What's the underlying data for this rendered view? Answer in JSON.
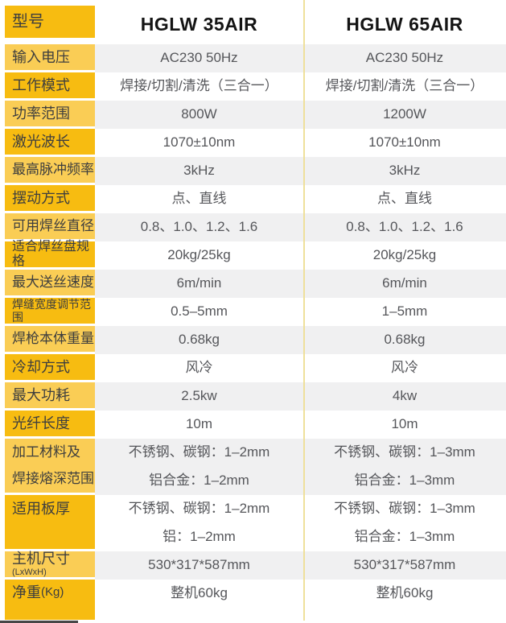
{
  "title": "激光焊机参数对比表",
  "colors": {
    "label_amber": "#F7BC11",
    "label_gold_light": "#FACD55",
    "row_gray": "#F0F0F1",
    "row_white": "#FFFFFF",
    "divider_gold": "#EFE09B",
    "label_text": "#3E3E3E",
    "value_text": "#55565A",
    "header_text": "#141414"
  },
  "table": {
    "header": {
      "label": "型号",
      "col1": "HGLW 35AIR",
      "col2": "HGLW 65AIR"
    },
    "rows": [
      {
        "label": "输入电压",
        "c1": "AC230 50Hz",
        "c2": "AC230 50Hz",
        "shade": "gray"
      },
      {
        "label": "工作模式",
        "c1": "焊接/切割/清洗（三合一）",
        "c2": "焊接/切割/清洗（三合一）",
        "shade": "white"
      },
      {
        "label": "功率范围",
        "c1": "800W",
        "c2": "1200W",
        "shade": "gray"
      },
      {
        "label": "激光波长",
        "c1": "1070±10nm",
        "c2": "1070±10nm",
        "shade": "white"
      },
      {
        "label": "最高脉冲频率",
        "c1": "3kHz",
        "c2": "3kHz",
        "shade": "gray"
      },
      {
        "label": "摆动方式",
        "c1": "点、直线",
        "c2": "点、直线",
        "shade": "white"
      },
      {
        "label": "可用焊丝直径",
        "c1": "0.8、1.0、1.2、1.6",
        "c2": "0.8、1.0、1.2、1.6",
        "shade": "gray"
      },
      {
        "label": "适合焊丝盘规格",
        "c1": "20kg/25kg",
        "c2": "20kg/25kg",
        "shade": "white"
      },
      {
        "label": "最大送丝速度",
        "c1": "6m/min",
        "c2": "6m/min",
        "shade": "gray"
      },
      {
        "label": "焊缝宽度调节范围",
        "c1": "0.5–5mm",
        "c2": "1–5mm",
        "shade": "white"
      },
      {
        "label": "焊枪本体重量",
        "c1": "0.68kg",
        "c2": "0.68kg",
        "shade": "gray"
      },
      {
        "label": "冷却方式",
        "c1": "风冷",
        "c2": "风冷",
        "shade": "white"
      },
      {
        "label": "最大功耗",
        "c1": "2.5kw",
        "c2": "4kw",
        "shade": "gray"
      },
      {
        "label": "光纤长度",
        "c1": "10m",
        "c2": "10m",
        "shade": "white"
      },
      {
        "label": [
          "加工材料及",
          "焊接熔深范围"
        ],
        "c1": [
          "不锈钢、碳钢：1–2mm",
          "铝合金：1–2mm"
        ],
        "c2": [
          "不锈钢、碳钢：1–3mm",
          "铝合金：1–3mm"
        ],
        "shade": "gray",
        "tall": true
      },
      {
        "label": "适用板厚",
        "c1": [
          "不锈钢、碳钢：1–2mm",
          "铝：1–2mm"
        ],
        "c2": [
          "不锈钢、碳钢：1–3mm",
          "铝合金：1–3mm"
        ],
        "shade": "white",
        "tall": true
      },
      {
        "label": "主机尺寸",
        "suffix": "(LxWxH)",
        "c1": "530*317*587mm",
        "c2": "530*317*587mm",
        "shade": "gray"
      },
      {
        "label": "净重",
        "suffix": "(Kg)",
        "c1": "整机60kg",
        "c2": "整机60kg",
        "shade": "white",
        "last": true
      }
    ]
  }
}
